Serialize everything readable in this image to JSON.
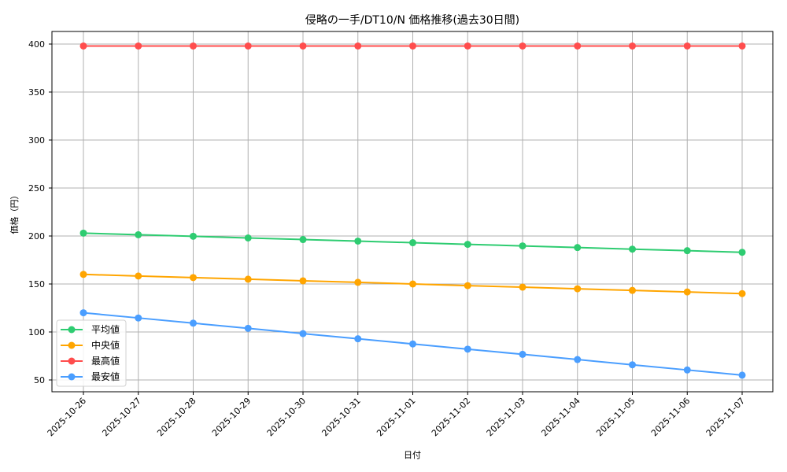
{
  "chart_data": {
    "type": "line",
    "title": "侵略の一手/DT10/N 価格推移(過去30日間)",
    "xlabel": "日付",
    "ylabel": "価格（円）",
    "ylim": [
      38,
      415
    ],
    "yticks": [
      50,
      100,
      150,
      200,
      250,
      300,
      350,
      400
    ],
    "grid": true,
    "legend_position": "lower left",
    "categories": [
      "2025-10-26",
      "2025-10-27",
      "2025-10-28",
      "2025-10-29",
      "2025-10-30",
      "2025-10-31",
      "2025-11-01",
      "2025-11-02",
      "2025-11-03",
      "2025-11-04",
      "2025-11-05",
      "2025-11-06",
      "2025-11-07"
    ],
    "series": [
      {
        "name": "平均値",
        "color": "#2ecc71",
        "values": [
          203,
          201.3,
          199.7,
          198,
          196.3,
          194.7,
          193,
          191.3,
          189.7,
          188,
          186.3,
          184.7,
          183
        ]
      },
      {
        "name": "中央値",
        "color": "#ffa500",
        "values": [
          160,
          158.3,
          156.7,
          155,
          153.3,
          151.7,
          150,
          148.3,
          146.7,
          145,
          143.3,
          141.7,
          140
        ]
      },
      {
        "name": "最高値",
        "color": "#ff4d4d",
        "values": [
          398,
          398,
          398,
          398,
          398,
          398,
          398,
          398,
          398,
          398,
          398,
          398,
          398
        ]
      },
      {
        "name": "最安値",
        "color": "#4a9eff",
        "values": [
          120,
          114.6,
          109.2,
          103.8,
          98.3,
          92.9,
          87.5,
          82.1,
          76.7,
          71.3,
          65.8,
          60.4,
          55
        ]
      }
    ]
  }
}
